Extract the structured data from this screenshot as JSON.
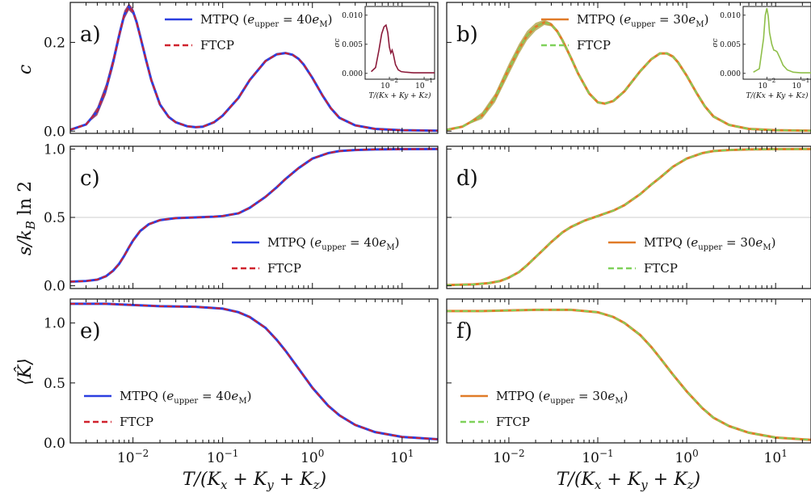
{
  "figure": {
    "xlabel": "T/(Kx + Ky + Kz)",
    "inset_xlabel": "T/(Kx + Ky + Kz)",
    "inset_ylabel": "σc"
  },
  "chart_data": [
    {
      "type": "line",
      "panel": "a)",
      "ylabel": "c",
      "xscale": "log",
      "xlim": [
        0.002,
        25
      ],
      "ylim": [
        -0.005,
        0.29
      ],
      "yticks": [
        "0.0",
        "0.2"
      ],
      "xticks": [
        "10^-2",
        "10^-1",
        "10^0",
        "10^1"
      ],
      "legend": "top-center",
      "series": [
        {
          "name": "MTPQ (eupper = 40eM)",
          "color": "#2b3fe0",
          "style": "solid",
          "x": [
            0.002,
            0.003,
            0.004,
            0.005,
            0.006,
            0.007,
            0.008,
            0.009,
            0.01,
            0.011,
            0.012,
            0.014,
            0.016,
            0.02,
            0.025,
            0.03,
            0.04,
            0.05,
            0.06,
            0.08,
            0.1,
            0.15,
            0.2,
            0.3,
            0.4,
            0.5,
            0.6,
            0.7,
            0.8,
            1.0,
            1.3,
            1.6,
            2.0,
            3.0,
            5.0,
            10.0,
            25.0
          ],
          "y": [
            0.003,
            0.015,
            0.045,
            0.095,
            0.155,
            0.215,
            0.262,
            0.28,
            0.27,
            0.245,
            0.215,
            0.16,
            0.115,
            0.06,
            0.032,
            0.02,
            0.011,
            0.009,
            0.01,
            0.02,
            0.035,
            0.075,
            0.115,
            0.158,
            0.173,
            0.176,
            0.172,
            0.163,
            0.15,
            0.12,
            0.08,
            0.052,
            0.03,
            0.013,
            0.005,
            0.002,
            0.001
          ]
        },
        {
          "name": "FTCP",
          "color": "#d0212d",
          "style": "dashed",
          "x": [
            0.002,
            0.003,
            0.004,
            0.005,
            0.006,
            0.007,
            0.008,
            0.009,
            0.01,
            0.011,
            0.012,
            0.014,
            0.016,
            0.02,
            0.025,
            0.03,
            0.04,
            0.05,
            0.06,
            0.08,
            0.1,
            0.15,
            0.2,
            0.3,
            0.4,
            0.5,
            0.6,
            0.7,
            0.8,
            1.0,
            1.3,
            1.6,
            2.0,
            3.0,
            5.0,
            10.0,
            25.0
          ],
          "y": [
            0.003,
            0.015,
            0.045,
            0.095,
            0.155,
            0.215,
            0.262,
            0.28,
            0.27,
            0.245,
            0.215,
            0.16,
            0.115,
            0.06,
            0.032,
            0.02,
            0.011,
            0.009,
            0.01,
            0.02,
            0.035,
            0.075,
            0.115,
            0.158,
            0.173,
            0.176,
            0.172,
            0.163,
            0.15,
            0.12,
            0.08,
            0.052,
            0.03,
            0.013,
            0.005,
            0.002,
            0.001
          ]
        }
      ],
      "band": {
        "color": "#8b1a3a",
        "x": [
          0.003,
          0.005,
          0.007,
          0.009,
          0.011,
          0.014
        ],
        "halfwidth": [
          0.006,
          0.012,
          0.012,
          0.008,
          0.006,
          0.004
        ]
      },
      "inset": {
        "xlim": [
          0.002,
          0.2
        ],
        "ylim": [
          -0.001,
          0.0115
        ],
        "yticks": [
          "0.000",
          "0.005",
          "0.010"
        ],
        "xticks": [
          "10^-2",
          "10^-1"
        ],
        "color": "#8b1a3a",
        "x": [
          0.003,
          0.004,
          0.005,
          0.006,
          0.007,
          0.008,
          0.009,
          0.01,
          0.011,
          0.012,
          0.013,
          0.015,
          0.018,
          0.022,
          0.03,
          0.05,
          0.1,
          0.2
        ],
        "y": [
          0.0003,
          0.001,
          0.004,
          0.0068,
          0.008,
          0.0083,
          0.007,
          0.0045,
          0.0035,
          0.004,
          0.0033,
          0.0015,
          0.0006,
          0.0003,
          0.0002,
          0.0001,
          0.0001,
          0.0001
        ]
      }
    },
    {
      "type": "line",
      "panel": "b)",
      "ylabel": "",
      "xscale": "log",
      "xlim": [
        0.002,
        25
      ],
      "ylim": [
        -0.005,
        0.29
      ],
      "yticks": [],
      "xticks": [
        "10^-2",
        "10^-1",
        "10^0",
        "10^1"
      ],
      "legend": "top-center",
      "series": [
        {
          "name": "MTPQ (eupper = 30eM)",
          "color": "#e07b28",
          "style": "solid",
          "x": [
            0.002,
            0.003,
            0.005,
            0.007,
            0.01,
            0.013,
            0.016,
            0.02,
            0.025,
            0.03,
            0.035,
            0.04,
            0.05,
            0.06,
            0.08,
            0.1,
            0.12,
            0.15,
            0.2,
            0.3,
            0.4,
            0.5,
            0.6,
            0.7,
            0.8,
            1.0,
            1.3,
            1.6,
            2.0,
            3.0,
            5.0,
            10.0,
            25.0
          ],
          "y": [
            0.003,
            0.01,
            0.035,
            0.075,
            0.14,
            0.185,
            0.215,
            0.235,
            0.245,
            0.24,
            0.225,
            0.205,
            0.165,
            0.13,
            0.085,
            0.065,
            0.062,
            0.068,
            0.09,
            0.135,
            0.162,
            0.175,
            0.175,
            0.168,
            0.155,
            0.125,
            0.085,
            0.056,
            0.033,
            0.014,
            0.005,
            0.002,
            0.001
          ]
        },
        {
          "name": "FTCP",
          "color": "#7fd15a",
          "style": "dashed",
          "x": [
            0.002,
            0.003,
            0.005,
            0.007,
            0.01,
            0.013,
            0.016,
            0.02,
            0.025,
            0.03,
            0.035,
            0.04,
            0.05,
            0.06,
            0.08,
            0.1,
            0.12,
            0.15,
            0.2,
            0.3,
            0.4,
            0.5,
            0.6,
            0.7,
            0.8,
            1.0,
            1.3,
            1.6,
            2.0,
            3.0,
            5.0,
            10.0,
            25.0
          ],
          "y": [
            0.003,
            0.01,
            0.035,
            0.075,
            0.14,
            0.185,
            0.215,
            0.235,
            0.245,
            0.24,
            0.225,
            0.205,
            0.165,
            0.13,
            0.085,
            0.065,
            0.062,
            0.068,
            0.09,
            0.135,
            0.162,
            0.175,
            0.175,
            0.168,
            0.155,
            0.125,
            0.085,
            0.056,
            0.033,
            0.014,
            0.005,
            0.002,
            0.001
          ]
        }
      ],
      "band": {
        "color": "#a6a040",
        "x": [
          0.004,
          0.007,
          0.01,
          0.015,
          0.02,
          0.025,
          0.03,
          0.04,
          0.05
        ],
        "halfwidth": [
          0.006,
          0.01,
          0.012,
          0.011,
          0.009,
          0.006,
          0.004,
          0.003,
          0.002
        ]
      },
      "inset": {
        "xlim": [
          0.002,
          0.2
        ],
        "ylim": [
          -0.001,
          0.0115
        ],
        "yticks": [
          "0.000",
          "0.005",
          "0.010"
        ],
        "xticks": [
          "10^-2",
          "10^-1"
        ],
        "color": "#8fbf4a",
        "x": [
          0.004,
          0.006,
          0.008,
          0.009,
          0.01,
          0.011,
          0.012,
          0.014,
          0.016,
          0.018,
          0.02,
          0.025,
          0.03,
          0.04,
          0.06,
          0.1,
          0.2
        ],
        "y": [
          0.0002,
          0.0008,
          0.006,
          0.01,
          0.0112,
          0.0098,
          0.007,
          0.005,
          0.004,
          0.0039,
          0.0037,
          0.0025,
          0.0014,
          0.0006,
          0.0002,
          0.0001,
          0.0001
        ]
      }
    },
    {
      "type": "line",
      "panel": "c)",
      "ylabel": "s/kB ln 2",
      "xscale": "log",
      "xlim": [
        0.002,
        25
      ],
      "ylim": [
        -0.02,
        1.02
      ],
      "yticks": [
        "0.0",
        "0.5",
        "1.0"
      ],
      "xticks": [
        "10^-2",
        "10^-1",
        "10^0",
        "10^1"
      ],
      "hline": 0.5,
      "legend": "lower-right",
      "series": [
        {
          "name": "MTPQ (eupper = 40eM)",
          "color": "#2b3fe0",
          "style": "solid",
          "x": [
            0.002,
            0.003,
            0.004,
            0.005,
            0.006,
            0.007,
            0.008,
            0.009,
            0.01,
            0.012,
            0.015,
            0.02,
            0.03,
            0.05,
            0.08,
            0.1,
            0.15,
            0.2,
            0.3,
            0.4,
            0.5,
            0.7,
            1.0,
            1.5,
            2.0,
            3.0,
            5.0,
            10.0,
            25.0
          ],
          "y": [
            0.03,
            0.035,
            0.045,
            0.07,
            0.11,
            0.16,
            0.22,
            0.28,
            0.33,
            0.4,
            0.45,
            0.48,
            0.495,
            0.5,
            0.505,
            0.51,
            0.53,
            0.57,
            0.65,
            0.72,
            0.78,
            0.86,
            0.93,
            0.97,
            0.985,
            0.993,
            0.997,
            0.999,
            1.0
          ]
        },
        {
          "name": "FTCP",
          "color": "#d0212d",
          "style": "dashed",
          "x": [
            0.002,
            0.003,
            0.004,
            0.005,
            0.006,
            0.007,
            0.008,
            0.009,
            0.01,
            0.012,
            0.015,
            0.02,
            0.03,
            0.05,
            0.08,
            0.1,
            0.15,
            0.2,
            0.3,
            0.4,
            0.5,
            0.7,
            1.0,
            1.5,
            2.0,
            3.0,
            5.0,
            10.0,
            25.0
          ],
          "y": [
            0.03,
            0.035,
            0.045,
            0.07,
            0.11,
            0.16,
            0.22,
            0.28,
            0.33,
            0.4,
            0.45,
            0.48,
            0.495,
            0.5,
            0.505,
            0.51,
            0.53,
            0.57,
            0.65,
            0.72,
            0.78,
            0.86,
            0.93,
            0.97,
            0.985,
            0.993,
            0.997,
            0.999,
            1.0
          ]
        }
      ]
    },
    {
      "type": "line",
      "panel": "d)",
      "ylabel": "",
      "xscale": "log",
      "xlim": [
        0.002,
        25
      ],
      "ylim": [
        -0.02,
        1.02
      ],
      "yticks": [],
      "xticks": [
        "10^-2",
        "10^-1",
        "10^0",
        "10^1"
      ],
      "hline": 0.5,
      "legend": "lower-right",
      "series": [
        {
          "name": "MTPQ (eupper = 30eM)",
          "color": "#e07b28",
          "style": "solid",
          "x": [
            0.002,
            0.004,
            0.006,
            0.008,
            0.01,
            0.013,
            0.016,
            0.02,
            0.025,
            0.03,
            0.04,
            0.05,
            0.07,
            0.1,
            0.15,
            0.2,
            0.3,
            0.4,
            0.5,
            0.7,
            1.0,
            1.5,
            2.0,
            3.0,
            5.0,
            10.0,
            25.0
          ],
          "y": [
            0.005,
            0.01,
            0.02,
            0.035,
            0.06,
            0.1,
            0.15,
            0.21,
            0.27,
            0.32,
            0.39,
            0.43,
            0.475,
            0.51,
            0.55,
            0.59,
            0.67,
            0.74,
            0.79,
            0.87,
            0.93,
            0.97,
            0.985,
            0.993,
            0.997,
            0.999,
            1.0
          ]
        },
        {
          "name": "FTCP",
          "color": "#7fd15a",
          "style": "dashed",
          "x": [
            0.002,
            0.004,
            0.006,
            0.008,
            0.01,
            0.013,
            0.016,
            0.02,
            0.025,
            0.03,
            0.04,
            0.05,
            0.07,
            0.1,
            0.15,
            0.2,
            0.3,
            0.4,
            0.5,
            0.7,
            1.0,
            1.5,
            2.0,
            3.0,
            5.0,
            10.0,
            25.0
          ],
          "y": [
            0.005,
            0.01,
            0.02,
            0.035,
            0.06,
            0.1,
            0.15,
            0.21,
            0.27,
            0.32,
            0.39,
            0.43,
            0.475,
            0.51,
            0.55,
            0.59,
            0.67,
            0.74,
            0.79,
            0.87,
            0.93,
            0.97,
            0.985,
            0.993,
            0.997,
            0.999,
            1.0
          ]
        }
      ]
    },
    {
      "type": "line",
      "panel": "e)",
      "ylabel": "⟨K̂⟩",
      "xscale": "log",
      "xlim": [
        0.002,
        25
      ],
      "ylim": [
        0.0,
        1.2
      ],
      "yticks": [
        "0.0",
        "0.5",
        "1.0"
      ],
      "xticks": [
        "10^-2",
        "10^-1",
        "10^0",
        "10^1"
      ],
      "legend": "lower-left",
      "series": [
        {
          "name": "MTPQ (eupper = 40eM)",
          "color": "#2b3fe0",
          "style": "solid",
          "x": [
            0.002,
            0.005,
            0.01,
            0.02,
            0.05,
            0.1,
            0.15,
            0.2,
            0.3,
            0.4,
            0.5,
            0.7,
            1.0,
            1.5,
            2.0,
            3.0,
            5.0,
            10.0,
            25.0
          ],
          "y": [
            1.16,
            1.16,
            1.15,
            1.14,
            1.135,
            1.12,
            1.09,
            1.05,
            0.96,
            0.86,
            0.77,
            0.62,
            0.46,
            0.31,
            0.23,
            0.15,
            0.09,
            0.05,
            0.03
          ]
        },
        {
          "name": "FTCP",
          "color": "#d0212d",
          "style": "dashed",
          "x": [
            0.002,
            0.005,
            0.01,
            0.02,
            0.05,
            0.1,
            0.15,
            0.2,
            0.3,
            0.4,
            0.5,
            0.7,
            1.0,
            1.5,
            2.0,
            3.0,
            5.0,
            10.0,
            25.0
          ],
          "y": [
            1.16,
            1.16,
            1.15,
            1.14,
            1.135,
            1.12,
            1.09,
            1.05,
            0.96,
            0.86,
            0.77,
            0.62,
            0.46,
            0.31,
            0.23,
            0.15,
            0.09,
            0.05,
            0.03
          ]
        }
      ]
    },
    {
      "type": "line",
      "panel": "f)",
      "ylabel": "",
      "xscale": "log",
      "xlim": [
        0.002,
        25
      ],
      "ylim": [
        0.0,
        1.2
      ],
      "yticks": [],
      "xticks": [
        "10^-2",
        "10^-1",
        "10^0",
        "10^1"
      ],
      "legend": "lower-left",
      "series": [
        {
          "name": "MTPQ (eupper = 30eM)",
          "color": "#e07b28",
          "style": "solid",
          "x": [
            0.002,
            0.005,
            0.01,
            0.02,
            0.05,
            0.1,
            0.15,
            0.2,
            0.3,
            0.4,
            0.5,
            0.7,
            1.0,
            1.5,
            2.0,
            3.0,
            5.0,
            10.0,
            25.0
          ],
          "y": [
            1.1,
            1.1,
            1.105,
            1.11,
            1.11,
            1.09,
            1.05,
            1.0,
            0.9,
            0.8,
            0.71,
            0.57,
            0.43,
            0.29,
            0.21,
            0.14,
            0.085,
            0.045,
            0.025
          ]
        },
        {
          "name": "FTCP",
          "color": "#7fd15a",
          "style": "dashed",
          "x": [
            0.002,
            0.005,
            0.01,
            0.02,
            0.05,
            0.1,
            0.15,
            0.2,
            0.3,
            0.4,
            0.5,
            0.7,
            1.0,
            1.5,
            2.0,
            3.0,
            5.0,
            10.0,
            25.0
          ],
          "y": [
            1.1,
            1.1,
            1.105,
            1.11,
            1.11,
            1.09,
            1.05,
            1.0,
            0.9,
            0.8,
            0.71,
            0.57,
            0.43,
            0.29,
            0.21,
            0.14,
            0.085,
            0.045,
            0.025
          ]
        }
      ]
    }
  ]
}
